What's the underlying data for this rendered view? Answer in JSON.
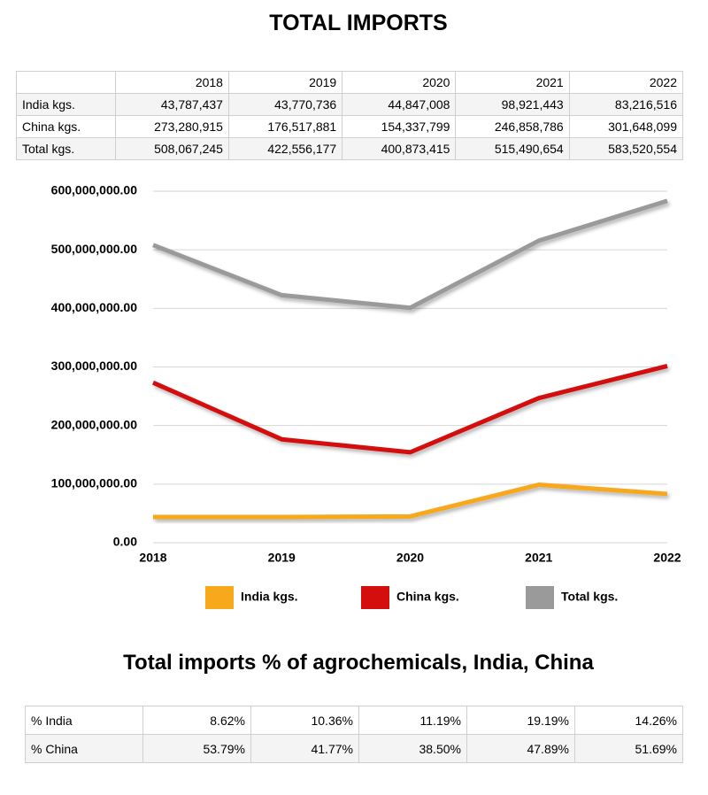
{
  "title": "TOTAL IMPORTS",
  "table": {
    "header": [
      "2018",
      "2019",
      "2020",
      "2021",
      "2022"
    ],
    "rows": [
      {
        "label": "India kgs.",
        "cells": [
          "43,787,437",
          "43,770,736",
          "44,847,008",
          "98,921,443",
          "83,216,516"
        ]
      },
      {
        "label": "China kgs.",
        "cells": [
          "273,280,915",
          "176,517,881",
          "154,337,799",
          "246,858,786",
          "301,648,099"
        ]
      },
      {
        "label": "Total kgs.",
        "cells": [
          "508,067,245",
          "422,556,177",
          "400,873,415",
          "515,490,654",
          "583,520,554"
        ]
      }
    ]
  },
  "chart_data": {
    "type": "line",
    "categories": [
      "2018",
      "2019",
      "2020",
      "2021",
      "2022"
    ],
    "series": [
      {
        "name": "India kgs.",
        "color": "#f7a81b",
        "values": [
          43787437,
          43770736,
          44847008,
          98921443,
          83216516
        ]
      },
      {
        "name": "China kgs.",
        "color": "#d40d0d",
        "values": [
          273280915,
          176517881,
          154337799,
          246858786,
          301648099
        ]
      },
      {
        "name": "Total kgs.",
        "color": "#9a9a9a",
        "values": [
          508067245,
          422556177,
          400873415,
          515490654,
          583520554
        ]
      }
    ],
    "ylim": [
      0,
      600000000
    ],
    "yticks": [
      {
        "value": 0,
        "label": "0.00"
      },
      {
        "value": 100000000,
        "label": "100,000,000.00"
      },
      {
        "value": 200000000,
        "label": "200,000,000.00"
      },
      {
        "value": 300000000,
        "label": "300,000,000.00"
      },
      {
        "value": 400000000,
        "label": "400,000,000.00"
      },
      {
        "value": 500000000,
        "label": "500,000,000.00"
      },
      {
        "value": 600000000,
        "label": "600,000,000.00"
      }
    ],
    "grid": true,
    "legend": "bottom"
  },
  "subtitle": "Total imports % of agrochemicals, India, China",
  "table2": {
    "rows": [
      {
        "label": "% India",
        "cells": [
          "8.62%",
          "10.36%",
          "11.19%",
          "19.19%",
          "14.26%"
        ]
      },
      {
        "label": "% China",
        "cells": [
          "53.79%",
          "41.77%",
          "38.50%",
          "47.89%",
          "51.69%"
        ]
      }
    ]
  }
}
